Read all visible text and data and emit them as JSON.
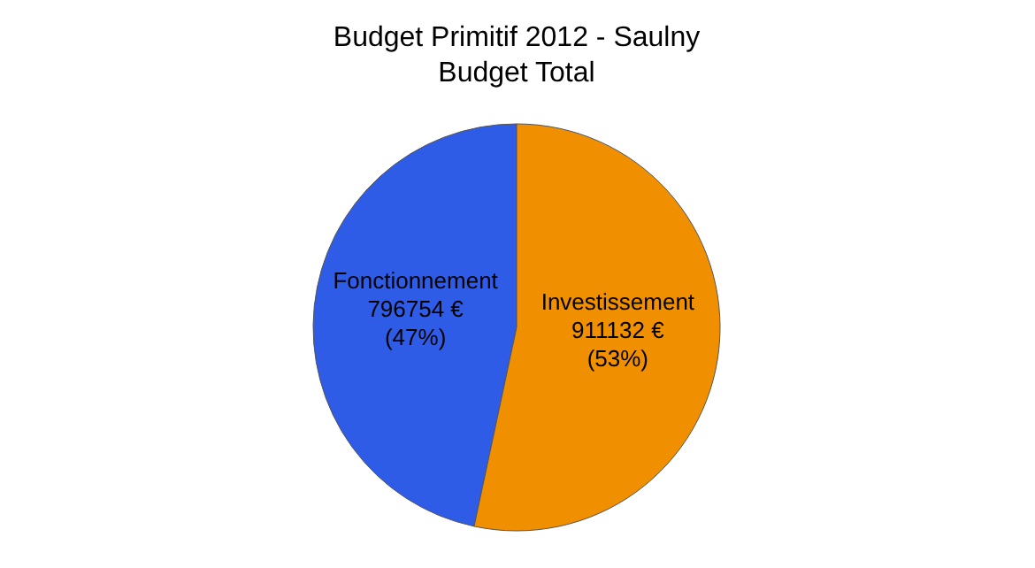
{
  "chart_data": {
    "type": "pie",
    "title": "Budget Primitif 2012 - Saulny",
    "subtitle": "Budget Total",
    "categories": [
      "Fonctionnement",
      "Investissement"
    ],
    "values": [
      796754,
      911132
    ],
    "colors": [
      "#2e5ce6",
      "#f09000"
    ],
    "value_labels": [
      "796754 €\n(47%)",
      "911132 €\n(53%)"
    ]
  }
}
